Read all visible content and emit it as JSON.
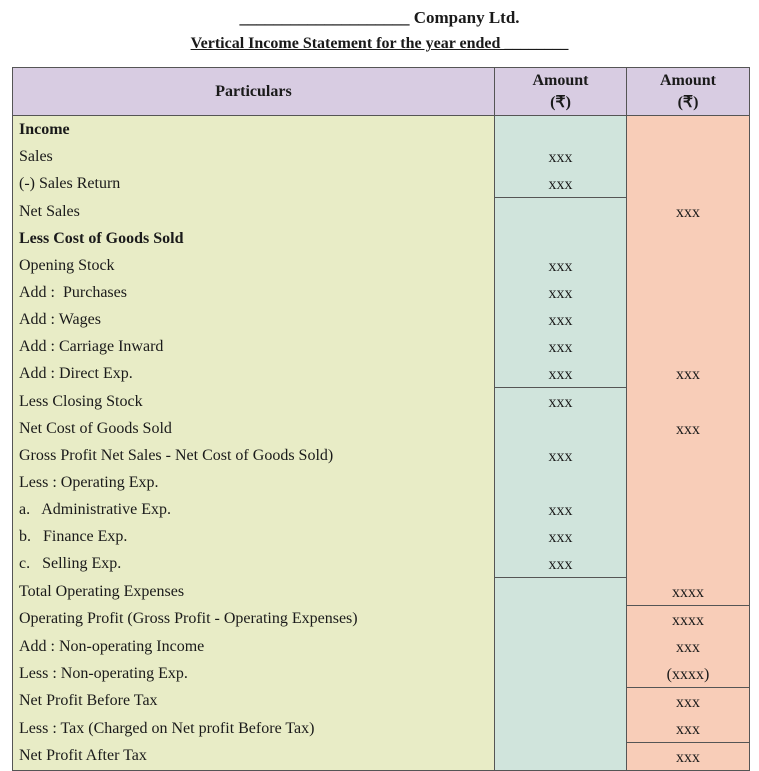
{
  "header": {
    "title": "____________________ Company Ltd.",
    "subtitle": "Vertical Income Statement for the year ended ________"
  },
  "table": {
    "columns": [
      [
        "Particulars"
      ],
      [
        "Amount",
        "(₹)"
      ],
      [
        "Amount",
        "(₹)"
      ]
    ],
    "rows": [
      [
        "Income",
        null,
        null
      ],
      [
        "Sales",
        "xxx",
        null
      ],
      [
        "(-) Sales Return",
        "xxx",
        null
      ],
      [
        "Net Sales",
        null,
        "xxx"
      ],
      [
        "Less Cost of Goods Sold",
        null,
        null
      ],
      [
        "Opening Stock",
        "xxx",
        null
      ],
      [
        "Add :  Purchases",
        "xxx",
        null
      ],
      [
        "Add : Wages",
        "xxx",
        null
      ],
      [
        "Add : Carriage Inward",
        "xxx",
        null
      ],
      [
        "Add : Direct Exp.",
        "xxx",
        "xxx"
      ],
      [
        "Less Closing Stock",
        "xxx",
        null
      ],
      [
        "Net Cost of Goods Sold",
        null,
        "xxx"
      ],
      [
        "Gross Profit Net Sales - Net Cost of Goods Sold)",
        "xxx",
        null
      ],
      [
        "Less : Operating Exp.",
        null,
        null
      ],
      [
        "a.   Administrative Exp.",
        "xxx",
        null
      ],
      [
        "b.   Finance Exp.",
        "xxx",
        null
      ],
      [
        "c.   Selling Exp.",
        "xxx",
        null
      ],
      [
        "Total Operating Expenses",
        null,
        "xxxx"
      ],
      [
        "Operating Profit (Gross Profit - Operating Expenses)",
        null,
        "xxxx"
      ],
      [
        "Add : Non-operating Income",
        null,
        "xxx"
      ],
      [
        "Less : Non-operating Exp.",
        null,
        "(xxxx)"
      ],
      [
        "Net Profit Before Tax",
        null,
        "xxx"
      ],
      [
        "Less : Tax (Charged on Net profit Before Tax)",
        null,
        "xxx"
      ],
      [
        "Net Profit After Tax",
        null,
        "xxx"
      ]
    ]
  }
}
